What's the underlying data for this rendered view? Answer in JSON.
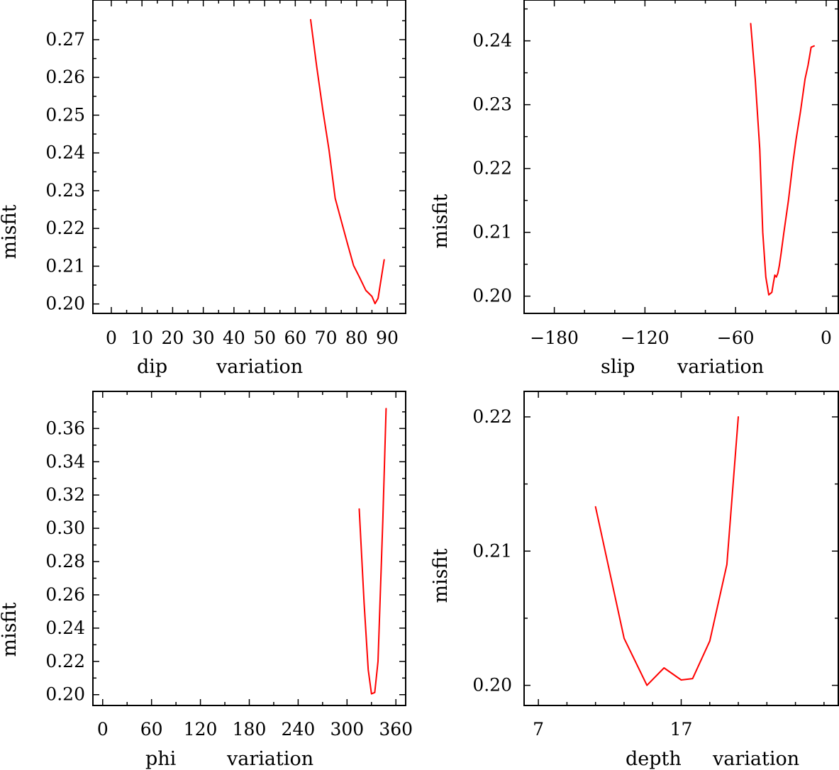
{
  "chart_data": [
    {
      "type": "line",
      "xlabel_words": [
        "dip",
        "variation"
      ],
      "ylabel": "misfit",
      "xlim": [
        -6,
        96
      ],
      "ylim": [
        0.1975,
        0.2805
      ],
      "xticks": [
        0,
        10,
        20,
        30,
        40,
        50,
        60,
        70,
        80,
        90
      ],
      "xtick_labels": [
        "0",
        "10",
        "20",
        "30",
        "40",
        "50",
        "60",
        "70",
        "80",
        "90"
      ],
      "yticks": [
        0.2,
        0.21,
        0.22,
        0.23,
        0.24,
        0.25,
        0.26,
        0.27
      ],
      "ytick_labels": [
        "0.20",
        "0.21",
        "0.22",
        "0.23",
        "0.24",
        "0.25",
        "0.26",
        "0.27"
      ],
      "grid": false,
      "series": [
        {
          "color": "#ff0000",
          "x": [
            65,
            67,
            69,
            71,
            73,
            75,
            77,
            79,
            81,
            83,
            85,
            86,
            87,
            89
          ],
          "y": [
            0.2753,
            0.2628,
            0.2512,
            0.2408,
            0.228,
            0.222,
            0.216,
            0.2102,
            0.207,
            0.2036,
            0.202,
            0.2001,
            0.2015,
            0.2117
          ]
        }
      ]
    },
    {
      "type": "line",
      "xlabel_words": [
        "slip",
        "variation"
      ],
      "ylabel": "misfit",
      "xlim": [
        -200,
        8
      ],
      "ylim": [
        0.1973,
        0.2464
      ],
      "xticks": [
        -180,
        -120,
        -60,
        0
      ],
      "xtick_labels": [
        "−180",
        "−120",
        "−60",
        "0"
      ],
      "minor_xticks": [
        -200,
        -160,
        -140,
        -100,
        -80,
        -40,
        -20
      ],
      "yticks": [
        0.2,
        0.21,
        0.22,
        0.23,
        0.24
      ],
      "ytick_labels": [
        "0.20",
        "0.21",
        "0.22",
        "0.23",
        "0.24"
      ],
      "grid": false,
      "series": [
        {
          "color": "#ff0000",
          "x": [
            -50,
            -47,
            -44,
            -42,
            -40,
            -38,
            -36,
            -35,
            -34,
            -33,
            -32,
            -31,
            -30,
            -28,
            -25,
            -22,
            -20,
            -17,
            -14,
            -12,
            -10,
            -8
          ],
          "y": [
            0.2427,
            0.234,
            0.223,
            0.21,
            0.203,
            0.2002,
            0.2006,
            0.202,
            0.2033,
            0.203,
            0.2036,
            0.2048,
            0.2065,
            0.21,
            0.215,
            0.221,
            0.2245,
            0.229,
            0.234,
            0.2362,
            0.239,
            0.2392
          ]
        }
      ]
    },
    {
      "type": "line",
      "xlabel_words": [
        "phi",
        "variation"
      ],
      "ylabel": "misfit",
      "xlim": [
        -12,
        372
      ],
      "ylim": [
        0.1935,
        0.3823
      ],
      "xticks": [
        0,
        60,
        120,
        180,
        240,
        300,
        360
      ],
      "xtick_labels": [
        "0",
        "60",
        "120",
        "180",
        "240",
        "300",
        "360"
      ],
      "yticks": [
        0.2,
        0.22,
        0.24,
        0.26,
        0.28,
        0.3,
        0.32,
        0.34,
        0.36
      ],
      "ytick_labels": [
        "0.20",
        "0.22",
        "0.24",
        "0.26",
        "0.28",
        "0.30",
        "0.32",
        "0.34",
        "0.36"
      ],
      "grid": false,
      "series": [
        {
          "color": "#ff0000",
          "x": [
            315,
            321,
            326,
            330,
            334,
            338,
            344,
            348
          ],
          "y": [
            0.3116,
            0.255,
            0.215,
            0.2005,
            0.2013,
            0.22,
            0.305,
            0.372
          ]
        }
      ]
    },
    {
      "type": "line",
      "xlabel_words": [
        "depth",
        "variation"
      ],
      "ylabel": "misfit",
      "xlim": [
        6,
        28
      ],
      "ylim": [
        0.1985,
        0.2219
      ],
      "xticks": [
        7,
        17
      ],
      "xtick_labels": [
        "7",
        "17"
      ],
      "minor_xticks": [
        9,
        11,
        13,
        15,
        19,
        21,
        23,
        25,
        27
      ],
      "yticks": [
        0.2,
        0.21,
        0.22
      ],
      "ytick_labels": [
        "0.20",
        "0.21",
        "0.22"
      ],
      "grid": false,
      "series": [
        {
          "color": "#ff0000",
          "x": [
            11,
            13,
            14.6,
            15.8,
            17,
            17.8,
            19,
            20.2,
            21
          ],
          "y": [
            0.2133,
            0.2035,
            0.2,
            0.2013,
            0.2004,
            0.2005,
            0.2033,
            0.209,
            0.22
          ]
        }
      ]
    }
  ]
}
